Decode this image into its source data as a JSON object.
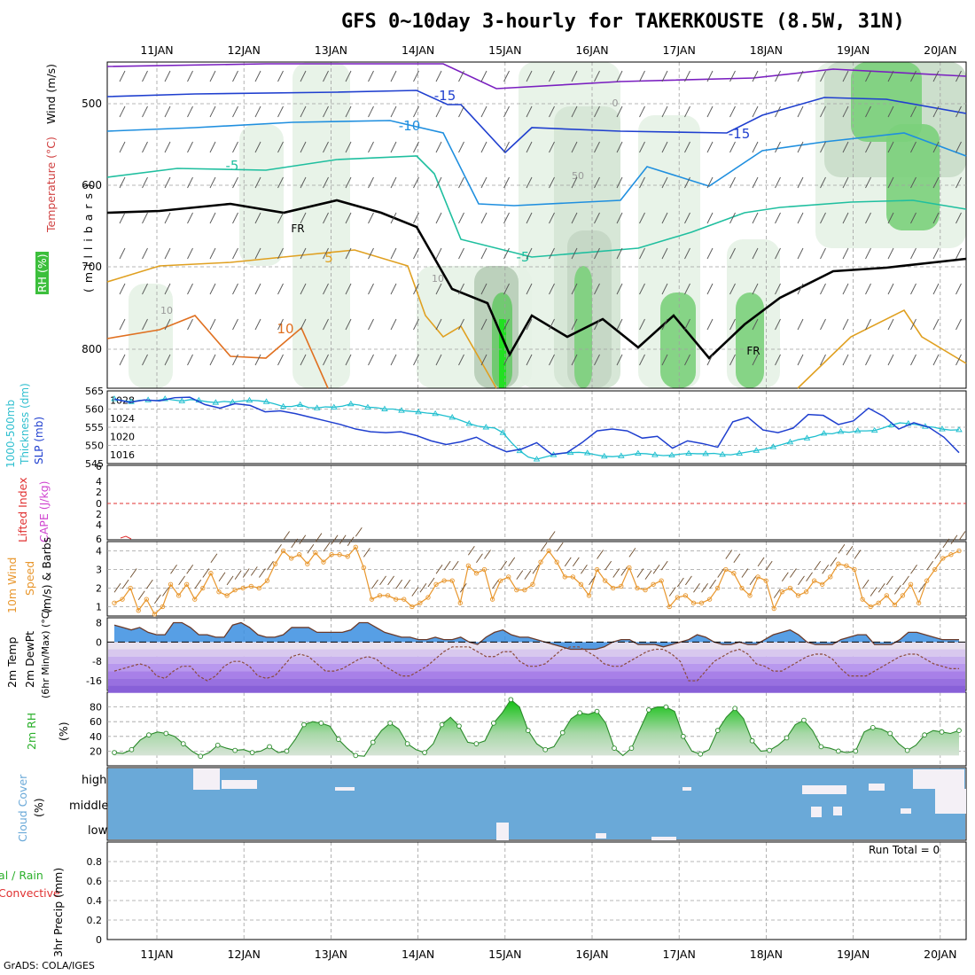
{
  "title": "GFS 0~10day 3-hourly for TAKERKOUSTE (8.5W, 31N)",
  "credit": "GrADS: COLA/IGES",
  "run_total": "Run Total = 0",
  "dates": [
    "11JAN",
    "12JAN",
    "13JAN",
    "14JAN",
    "15JAN",
    "16JAN",
    "17JAN",
    "18JAN",
    "19JAN",
    "20JAN"
  ],
  "colors": {
    "grid": "#a0a0a0",
    "temp_high": "#e87c1e",
    "slp": "#1f3fcf",
    "thickness": "#1fbfcf",
    "wind10": "#e8962c",
    "rh_fill": "#2bd12b",
    "cloud": "#6aa9d8",
    "cape": "#d046d0",
    "lifted": "#e03030"
  },
  "panel_labels": {
    "upper_wind": "Wind (m/s)",
    "upper_temp": "Temperature (°C)",
    "upper_rh": "RH (%)",
    "upper_axis": "( m i l l i b a r s )",
    "thick_1": "1000-500mb",
    "thick_2": "Thickness (dm)",
    "slp": "SLP (mb)",
    "lifted": "Lifted Index",
    "cape": "CAPE (J/kg)",
    "wind_1": "10m Wind",
    "wind_2": "Speed",
    "wind_3": "(m/s) & Barbs",
    "temp_1": "2m Temp",
    "temp_2": "2m DewPt",
    "temp_3": "(6hr Min/Max) (°C)",
    "rh2m": "2m RH",
    "rh2m_unit": "(%)",
    "cloud": "Cloud Cover",
    "cloud_unit": "(%)",
    "precip_1": "Total / Rain",
    "precip_2": "Convective",
    "precip_3": "3hr Precip (mm)"
  },
  "cloud_levels": [
    "high",
    "middle",
    "low"
  ],
  "contour_labels": {
    "t_m15": "-15",
    "t_m10": "-10",
    "t_m5": "-5",
    "t_5": "5",
    "t_10": "10",
    "fr": "FR",
    "rh_10": "10",
    "rh_50": "50",
    "rh_0": "0"
  },
  "chart_data": [
    {
      "panel": "upper_air",
      "type": "heatmap",
      "ylabel": "millibars",
      "y_ticks": [
        500,
        600,
        700,
        800
      ],
      "ylim": [
        850,
        450
      ],
      "contours_temperature_C": [
        -15,
        -10,
        -5,
        0,
        5,
        10
      ],
      "freezing_level_label": "FR",
      "grid": true
    },
    {
      "panel": "thickness_slp",
      "type": "line",
      "x_step_hours": 3,
      "series": [
        {
          "name": "1000-500mb Thickness (dm)",
          "axis": "left",
          "ylim": [
            545,
            565
          ],
          "values": [
            562.8,
            562.3,
            562.0,
            562.4,
            562.5,
            562.3,
            562.8,
            562.5,
            562.2,
            562.6,
            562.4,
            562.0,
            561.8,
            562.1,
            561.9,
            562.2,
            562.4,
            562.3,
            562.0,
            561.4,
            560.7,
            560.7,
            561.2,
            560.4,
            560.3,
            560.6,
            560.5,
            560.8,
            561.4,
            561.1,
            560.5,
            560.4,
            560.0,
            560.0,
            559.6,
            559.4,
            559.2,
            558.9,
            558.7,
            558.2,
            557.7,
            556.9,
            556.0,
            555.3,
            555.0,
            554.8,
            553.5,
            550.8,
            548.5,
            546.8,
            546.2,
            546.8,
            547.4,
            547.8,
            548.0,
            548.1,
            547.9,
            547.4,
            547.0,
            546.9,
            547.1,
            547.4,
            547.8,
            547.7,
            547.4,
            547.2,
            547.3,
            547.6,
            547.8,
            547.7,
            547.7,
            547.8,
            547.5,
            547.4,
            547.8,
            548.2,
            548.6,
            549.0,
            549.6,
            550.2,
            550.9,
            551.6,
            552.0,
            552.5,
            553.3,
            553.2,
            553.8,
            553.6,
            554.0,
            554.0,
            554.1,
            554.8,
            555.6,
            556.2,
            556.0,
            555.7,
            555.2,
            555.0,
            554.5,
            554.2,
            554.3
          ]
        },
        {
          "name": "SLP (mb)",
          "axis": "right",
          "ylim": [
            1014,
            1030
          ],
          "values": [
            1028.2,
            1027.5,
            1028.0,
            1027.8,
            1028.5,
            1028.6,
            1027.0,
            1026.2,
            1027.2,
            1026.8,
            1025.4,
            1025.6,
            1025.0,
            1024.2,
            1023.4,
            1022.6,
            1021.6,
            1021.0,
            1020.8,
            1021.0,
            1020.2,
            1019.0,
            1018.2,
            1018.8,
            1019.8,
            1018.0,
            1016.6,
            1017.2,
            1018.6,
            1016.0,
            1016.4,
            1018.6,
            1021.2,
            1021.6,
            1021.2,
            1019.6,
            1020.0,
            1017.4,
            1019.0,
            1018.4,
            1017.6,
            1023.2,
            1024.2,
            1021.4,
            1020.8,
            1021.8,
            1024.8,
            1024.6,
            1022.6,
            1023.4,
            1026.2,
            1024.4,
            1021.6,
            1023.0,
            1022.0,
            1019.8,
            1016.4
          ]
        }
      ]
    },
    {
      "panel": "stability",
      "type": "line",
      "series": [
        {
          "name": "Lifted Index",
          "ylim": [
            6,
            -6
          ],
          "values": [
            0
          ]
        },
        {
          "name": "CAPE (J/kg)",
          "values": [
            0
          ]
        }
      ]
    },
    {
      "panel": "wind10m",
      "type": "line",
      "ylabel": "10m Wind Speed (m/s)",
      "ylim": [
        0.5,
        4.5
      ],
      "series": [
        {
          "name": "10m Wind Speed",
          "values": [
            1.2,
            1.4,
            2.0,
            0.8,
            1.4,
            0.6,
            1.0,
            2.2,
            1.6,
            2.2,
            1.4,
            2.0,
            2.8,
            1.8,
            1.6,
            1.9,
            2.0,
            2.1,
            2.0,
            2.4,
            3.3,
            4.0,
            3.6,
            3.8,
            3.3,
            3.9,
            3.4,
            3.8,
            3.8,
            3.7,
            4.2,
            3.1,
            1.4,
            1.6,
            1.6,
            1.4,
            1.4,
            1.0,
            1.2,
            1.5,
            2.2,
            2.4,
            2.4,
            1.2,
            3.2,
            2.8,
            3.0,
            1.4,
            2.4,
            2.6,
            1.9,
            1.9,
            2.2,
            3.4,
            4.0,
            3.4,
            2.6,
            2.6,
            2.2,
            1.6,
            3.0,
            2.4,
            2.0,
            2.1,
            3.1,
            2.0,
            1.9,
            2.2,
            2.4,
            1.0,
            1.5,
            1.6,
            1.2,
            1.2,
            1.4,
            2.0,
            3.0,
            2.8,
            2.0,
            1.6,
            2.6,
            2.4,
            0.9,
            1.8,
            2.0,
            1.6,
            1.8,
            2.4,
            2.2,
            2.6,
            3.3,
            3.2,
            3.0,
            1.4,
            1.0,
            1.2,
            1.6,
            1.1,
            1.6,
            2.2,
            1.2,
            2.4,
            3.0,
            3.6,
            3.8,
            4.0
          ]
        }
      ]
    },
    {
      "panel": "temp2m",
      "type": "area",
      "ylabel": "2m Temp / 2m DewPt (6hr Min/Max) (°C)",
      "y_ticks": [
        8,
        0,
        -8,
        -16
      ],
      "ylim": [
        -20,
        10
      ],
      "series": [
        {
          "name": "2m Temp",
          "values": [
            7,
            6,
            5,
            6,
            4,
            3,
            3,
            8,
            8,
            6,
            3,
            3,
            2,
            2,
            7,
            8,
            6,
            3,
            2,
            2,
            3,
            6,
            6,
            6,
            4,
            4,
            4,
            4,
            5,
            8,
            8,
            6,
            4,
            3,
            2,
            2,
            1,
            1,
            2,
            1,
            1,
            2,
            0,
            -1,
            2,
            4,
            5,
            3,
            2,
            2,
            1,
            0,
            -1,
            -2,
            -3,
            -3,
            -3,
            -3,
            -2,
            0,
            1,
            1,
            -1,
            -1,
            -1,
            -2,
            -1,
            0,
            1,
            3,
            2,
            0,
            -1,
            -1,
            0,
            -1,
            -1,
            1,
            3,
            4,
            5,
            3,
            0,
            -1,
            -1,
            -1,
            1,
            2,
            3,
            3,
            -1,
            -1,
            -1,
            1,
            4,
            4,
            3,
            2,
            1,
            1,
            1
          ]
        },
        {
          "name": "2m DewPt",
          "values": [
            -12,
            -11,
            -10,
            -9,
            -10,
            -14,
            -15,
            -12,
            -10,
            -10,
            -14,
            -16,
            -14,
            -10,
            -8,
            -8,
            -10,
            -14,
            -15,
            -14,
            -10,
            -6,
            -5,
            -6,
            -9,
            -12,
            -12,
            -11,
            -9,
            -7,
            -6,
            -7,
            -10,
            -12,
            -14,
            -14,
            -12,
            -10,
            -7,
            -4,
            -2,
            -2,
            -2,
            -4,
            -6,
            -6,
            -4,
            -4,
            -8,
            -10,
            -10,
            -9,
            -6,
            -3,
            -2,
            -2,
            -4,
            -6,
            -9,
            -10,
            -10,
            -8,
            -6,
            -4,
            -3,
            -3,
            -5,
            -8,
            -16,
            -16,
            -12,
            -8,
            -6,
            -4,
            -3,
            -5,
            -9,
            -10,
            -12,
            -12,
            -10,
            -8,
            -6,
            -5,
            -5,
            -7,
            -11,
            -14,
            -14,
            -14,
            -12,
            -10,
            -8,
            -6,
            -5,
            -5,
            -7,
            -9,
            -10,
            -11,
            -11
          ]
        }
      ]
    },
    {
      "panel": "rh2m",
      "type": "area",
      "ylabel": "2m RH (%)",
      "y_ticks": [
        20,
        40,
        60,
        80
      ],
      "ylim": [
        0,
        100
      ],
      "series": [
        {
          "name": "2m RH",
          "values": [
            18,
            17,
            22,
            35,
            42,
            46,
            44,
            40,
            30,
            20,
            13,
            18,
            28,
            24,
            21,
            22,
            18,
            20,
            26,
            18,
            20,
            36,
            56,
            60,
            58,
            54,
            36,
            24,
            14,
            13,
            32,
            48,
            58,
            50,
            30,
            22,
            18,
            30,
            56,
            66,
            54,
            32,
            30,
            34,
            58,
            72,
            90,
            80,
            48,
            30,
            22,
            26,
            45,
            64,
            72,
            70,
            74,
            58,
            24,
            14,
            24,
            50,
            76,
            80,
            80,
            74,
            40,
            20,
            16,
            22,
            48,
            66,
            78,
            64,
            34,
            20,
            21,
            28,
            38,
            56,
            62,
            48,
            26,
            24,
            20,
            18,
            20,
            46,
            52,
            50,
            44,
            30,
            21,
            28,
            42,
            48,
            46,
            44,
            48
          ]
        }
      ]
    },
    {
      "panel": "cloud_cover",
      "type": "heatmap",
      "levels": [
        "high",
        "middle",
        "low"
      ],
      "note_values_percent": "mostly overcast (100%) across all levels"
    },
    {
      "panel": "precip",
      "type": "bar",
      "ylabel": "3hr Precip (mm)",
      "y_ticks": [
        0,
        0.2,
        0.4,
        0.6,
        0.8
      ],
      "ylim": [
        0,
        1
      ],
      "series": [
        {
          "name": "Total / Rain",
          "values": [
            0
          ]
        },
        {
          "name": "Convective",
          "values": [
            0
          ]
        }
      ]
    }
  ]
}
